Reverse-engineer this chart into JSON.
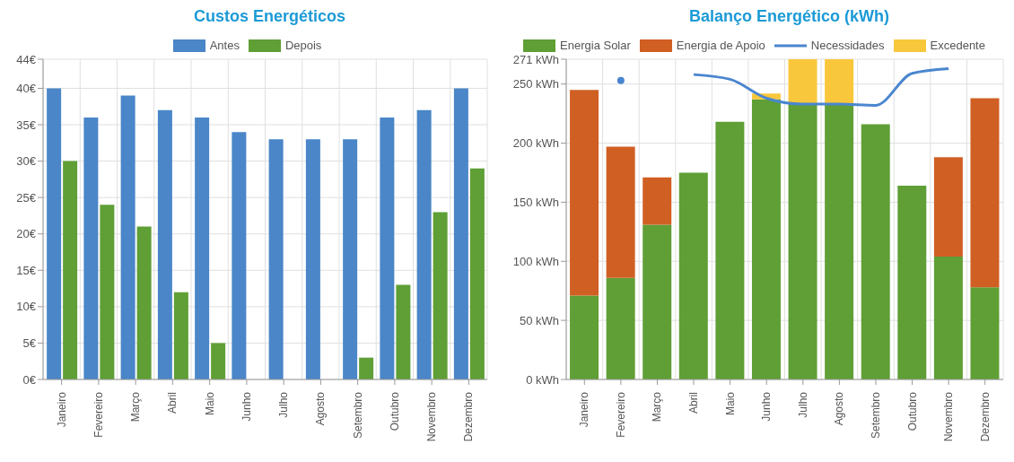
{
  "chart_data": [
    {
      "type": "bar",
      "title": "Custos Energéticos",
      "categories": [
        "Janeiro",
        "Fevereiro",
        "Março",
        "Abril",
        "Maio",
        "Junho",
        "Julho",
        "Agosto",
        "Setembro",
        "Outubro",
        "Novembro",
        "Dezembro"
      ],
      "series": [
        {
          "name": "Antes",
          "color": "#4a86c8",
          "values": [
            40,
            36,
            39,
            37,
            36,
            34,
            33,
            33,
            33,
            36,
            37,
            40
          ]
        },
        {
          "name": "Depois",
          "color": "#5f9f36",
          "values": [
            30,
            24,
            21,
            12,
            5,
            0,
            0,
            0,
            3,
            13,
            23,
            29
          ]
        }
      ],
      "ylim": [
        0,
        44
      ],
      "yticks": [
        {
          "value": 0,
          "label": "0€"
        },
        {
          "value": 5,
          "label": "5€"
        },
        {
          "value": 10,
          "label": "10€"
        },
        {
          "value": 15,
          "label": "15€"
        },
        {
          "value": 20,
          "label": "20€"
        },
        {
          "value": 25,
          "label": "25€"
        },
        {
          "value": 30,
          "label": "30€"
        },
        {
          "value": 35,
          "label": "35€"
        },
        {
          "value": 40,
          "label": "40€"
        },
        {
          "value": 44,
          "label": "44€"
        }
      ],
      "grid": true,
      "legend": "top"
    },
    {
      "type": "bar",
      "stacked": true,
      "title": "Balanço Energético (kWh)",
      "categories": [
        "Janeiro",
        "Fevereiro",
        "Março",
        "Abril",
        "Maio",
        "Junho",
        "Julho",
        "Agosto",
        "Setembro",
        "Outubro",
        "Novembro",
        "Dezembro"
      ],
      "series": [
        {
          "name": "Energia Solar",
          "color": "#5f9f36",
          "values": [
            71,
            86,
            131,
            175,
            218,
            237,
            233,
            233,
            216,
            164,
            104,
            78
          ]
        },
        {
          "name": "Energia de Apoio",
          "color": "#d05f23",
          "values": [
            174,
            111,
            40,
            0,
            0,
            0,
            0,
            0,
            0,
            0,
            84,
            160
          ]
        },
        {
          "type": "line",
          "name": "Necessidades",
          "color": "#4a86cf",
          "values": [
            null,
            253,
            null,
            258,
            254,
            238,
            233,
            233,
            232,
            259,
            263,
            null
          ]
        },
        {
          "name": "Excedente",
          "color": "#f9c73c",
          "values": [
            0,
            0,
            0,
            0,
            0,
            5,
            38,
            38,
            0,
            0,
            0,
            0
          ]
        }
      ],
      "ylim": [
        0,
        271
      ],
      "yticks": [
        {
          "value": 0,
          "label": "0 kWh"
        },
        {
          "value": 50,
          "label": "50 kWh"
        },
        {
          "value": 100,
          "label": "100 kWh"
        },
        {
          "value": 150,
          "label": "150 kWh"
        },
        {
          "value": 200,
          "label": "200 kWh"
        },
        {
          "value": 250,
          "label": "250 kWh"
        },
        {
          "value": 271,
          "label": "271 kWh"
        }
      ],
      "grid": true,
      "legend": "top"
    }
  ]
}
